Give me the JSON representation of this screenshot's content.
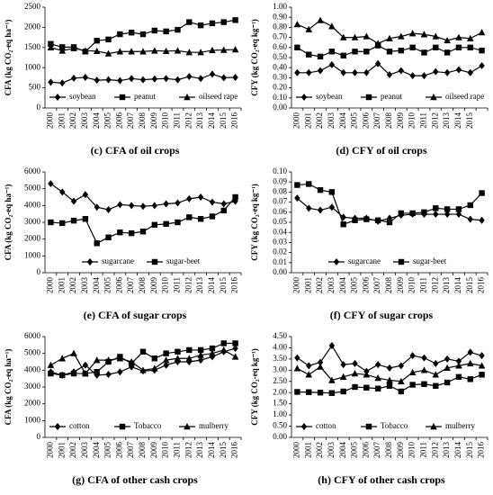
{
  "chart_data": [
    {
      "type": "line",
      "caption": "(c) CFA of oil crops",
      "ylabel": "CFA (kg CO₂-eq ha⁻¹)",
      "legend": "lower center",
      "categories": [
        "2000",
        "2001",
        "2002",
        "2003",
        "2004",
        "2005",
        "2006",
        "2007",
        "2008",
        "2009",
        "2010",
        "2011",
        "2012",
        "2013",
        "2014",
        "2015",
        "2016"
      ],
      "ylim": [
        0,
        2500
      ],
      "yticks": [
        0,
        500,
        1000,
        1500,
        2000,
        2500
      ],
      "series": [
        {
          "name": "soybean",
          "color": "#000000",
          "marker": "diamond",
          "values": [
            640,
            620,
            740,
            760,
            690,
            700,
            680,
            730,
            700,
            720,
            730,
            700,
            780,
            730,
            840,
            750,
            760
          ]
        },
        {
          "name": "peanut",
          "color": "#000000",
          "marker": "square",
          "values": [
            1590,
            1510,
            1510,
            1400,
            1670,
            1700,
            1830,
            1870,
            1830,
            1920,
            1900,
            1940,
            2130,
            2050,
            2100,
            2130,
            2180
          ]
        },
        {
          "name": "oilseed rape",
          "color": "#000000",
          "marker": "triangle",
          "values": [
            1500,
            1420,
            1480,
            1420,
            1410,
            1350,
            1400,
            1400,
            1400,
            1420,
            1410,
            1420,
            1380,
            1380,
            1430,
            1440,
            1450
          ]
        }
      ]
    },
    {
      "type": "line",
      "caption": "(d) CFY of oil crops",
      "ylabel": "CFY (kg CO₂-eq kg⁻¹)",
      "legend": "lower center",
      "categories": [
        "2000",
        "2001",
        "2002",
        "2003",
        "2004",
        "2005",
        "2006",
        "2007",
        "2008",
        "2009",
        "2010",
        "2011",
        "2012",
        "2013",
        "2014",
        "2015",
        null
      ],
      "ylim": [
        0,
        1
      ],
      "yticks": [
        {
          "value": 0,
          "label": "0.00"
        },
        {
          "value": 0.1,
          "label": "0.10"
        },
        {
          "value": 0.2,
          "label": "0.20"
        },
        {
          "value": 0.3,
          "label": "0.30"
        },
        {
          "value": 0.4,
          "label": "0.40"
        },
        {
          "value": 0.5,
          "label": "0.50"
        },
        {
          "value": 0.6,
          "label": "0.60"
        },
        {
          "value": 0.7,
          "label": "0.70"
        },
        {
          "value": 0.8,
          "label": "0.80"
        },
        {
          "value": 0.9,
          "label": "0.90"
        },
        {
          "value": 1,
          "label": "1.00"
        }
      ],
      "series": [
        {
          "name": "soybean",
          "color": "#000000",
          "marker": "diamond",
          "values": [
            0.35,
            0.35,
            0.37,
            0.43,
            0.35,
            0.35,
            0.35,
            0.44,
            0.33,
            0.37,
            0.32,
            0.32,
            0.36,
            0.35,
            0.38,
            0.35,
            0.42
          ]
        },
        {
          "name": "peanut",
          "color": "#000000",
          "marker": "square",
          "values": [
            0.6,
            0.53,
            0.51,
            0.56,
            0.52,
            0.56,
            0.56,
            0.62,
            0.56,
            0.57,
            0.6,
            0.55,
            0.6,
            0.55,
            0.6,
            0.6,
            0.57
          ]
        },
        {
          "name": "oilseed rape",
          "color": "#000000",
          "marker": "triangle",
          "values": [
            0.83,
            0.78,
            0.87,
            0.81,
            0.7,
            0.7,
            0.71,
            0.64,
            0.69,
            0.71,
            0.74,
            0.73,
            0.71,
            0.67,
            0.7,
            0.69,
            0.75
          ]
        }
      ]
    },
    {
      "type": "line",
      "caption": "(e) CFA of sugar crops",
      "ylabel": "CFA (kg CO₂-eq ha⁻¹)",
      "legend": "lower center",
      "categories": [
        "2000",
        "2001",
        "2002",
        "2003",
        "2004",
        "2005",
        "2006",
        "2007",
        "2008",
        "2009",
        "2010",
        "2011",
        "2012",
        "2013",
        "2014",
        "2015",
        "2016"
      ],
      "ylim": [
        0,
        6000
      ],
      "yticks": [
        0,
        1000,
        2000,
        3000,
        4000,
        5000,
        6000
      ],
      "series": [
        {
          "name": "sugarcane",
          "color": "#000000",
          "marker": "diamond",
          "values": [
            5300,
            4800,
            4250,
            4650,
            3900,
            3750,
            4050,
            4000,
            3950,
            4000,
            4100,
            4150,
            4400,
            4500,
            4200,
            4100,
            4250
          ]
        },
        {
          "name": "sugar-beet",
          "color": "#000000",
          "marker": "square",
          "values": [
            3000,
            2950,
            3100,
            3200,
            1750,
            2100,
            2400,
            2350,
            2450,
            2850,
            2900,
            3000,
            3300,
            3200,
            3350,
            3700,
            4500
          ]
        }
      ]
    },
    {
      "type": "line",
      "caption": "(f) CFY of sugar crops",
      "ylabel": "CFY (kg CO₂-eq kg⁻¹)",
      "legend": "lower center",
      "categories": [
        "2000",
        "2001",
        "2002",
        "2003",
        "2004",
        "2005",
        "2006",
        "2007",
        "2008",
        "2009",
        "2010",
        "2011",
        "2012",
        "2013",
        "2014",
        "2015",
        "2016"
      ],
      "ylim": [
        0,
        0.1
      ],
      "yticks": [
        {
          "value": 0,
          "label": "0.00"
        },
        {
          "value": 0.01,
          "label": "0.01"
        },
        {
          "value": 0.02,
          "label": "0.02"
        },
        {
          "value": 0.03,
          "label": "0.03"
        },
        {
          "value": 0.04,
          "label": "0.04"
        },
        {
          "value": 0.05,
          "label": "0.05"
        },
        {
          "value": 0.06,
          "label": "0.06"
        },
        {
          "value": 0.07,
          "label": "0.07"
        },
        {
          "value": 0.08,
          "label": "0.08"
        },
        {
          "value": 0.09,
          "label": "0.09"
        },
        {
          "value": 0.1,
          "label": "0.10"
        }
      ],
      "series": [
        {
          "name": "sugarcane",
          "color": "#000000",
          "marker": "diamond",
          "values": [
            0.074,
            0.064,
            0.062,
            0.065,
            0.055,
            0.054,
            0.054,
            0.051,
            0.054,
            0.057,
            0.058,
            0.058,
            0.058,
            0.058,
            0.058,
            0.053,
            0.052
          ]
        },
        {
          "name": "sugar-beet",
          "color": "#000000",
          "marker": "square",
          "values": [
            0.087,
            0.088,
            0.082,
            0.08,
            0.048,
            0.052,
            0.053,
            0.052,
            0.05,
            0.059,
            0.059,
            0.06,
            0.064,
            0.063,
            0.063,
            0.067,
            0.079
          ]
        }
      ]
    },
    {
      "type": "line",
      "caption": "(g) CFA of other cash crops",
      "ylabel": "CFA (kg CO₂-eq ha⁻¹)",
      "legend": "lower center",
      "categories": [
        "2000",
        "2001",
        "2002",
        "2003",
        "2004",
        "2005",
        "2006",
        "2007",
        "2008",
        "2009",
        "2010",
        "2011",
        "2012",
        "2013",
        "2014",
        "2015",
        "2016"
      ],
      "ylim": [
        0,
        6000
      ],
      "yticks": [
        0,
        1000,
        2000,
        3000,
        4000,
        5000,
        6000
      ],
      "series": [
        {
          "name": "cotton",
          "color": "#000000",
          "marker": "diamond",
          "values": [
            3900,
            3700,
            3900,
            4300,
            3700,
            3750,
            3900,
            4200,
            3950,
            4000,
            4300,
            4500,
            4500,
            4600,
            4800,
            5100,
            5300
          ]
        },
        {
          "name": "Tobacco",
          "color": "#000000",
          "marker": "square",
          "values": [
            3800,
            3700,
            3800,
            3800,
            3900,
            4500,
            4800,
            4400,
            5100,
            4700,
            5000,
            5100,
            5200,
            5200,
            5300,
            5600,
            5600
          ]
        },
        {
          "name": "mulberry",
          "color": "#000000",
          "marker": "triangle",
          "values": [
            4300,
            4700,
            5000,
            3800,
            4600,
            4600,
            4700,
            4500,
            4000,
            4100,
            4600,
            4700,
            4700,
            4900,
            5000,
            5200,
            4800
          ]
        }
      ]
    },
    {
      "type": "line",
      "caption": "(h) CFY of other cash crops",
      "ylabel": "CFY (kg CO₂-eq kg⁻¹)",
      "legend": "lower center",
      "categories": [
        "2000",
        "2001",
        "2002",
        "2003",
        "2004",
        "2005",
        "2006",
        "2007",
        "2008",
        "2009",
        "2010",
        "2011",
        "2012",
        "2013",
        "2014",
        "2015",
        "2016"
      ],
      "ylim": [
        0,
        4.5
      ],
      "yticks": [
        {
          "value": 0,
          "label": "0.00"
        },
        {
          "value": 0.5,
          "label": "0.50"
        },
        {
          "value": 1,
          "label": "1.00"
        },
        {
          "value": 1.5,
          "label": "1.50"
        },
        {
          "value": 2,
          "label": "2.00"
        },
        {
          "value": 2.5,
          "label": "2.50"
        },
        {
          "value": 3,
          "label": "3.00"
        },
        {
          "value": 3.5,
          "label": "3.50"
        },
        {
          "value": 4,
          "label": "4.00"
        },
        {
          "value": 4.5,
          "label": "4.50"
        }
      ],
      "series": [
        {
          "name": "cotton",
          "color": "#000000",
          "marker": "diamond",
          "values": [
            3.55,
            3.2,
            3.35,
            4.1,
            3.25,
            3.3,
            2.95,
            3.25,
            3.1,
            3.2,
            3.65,
            3.55,
            3.3,
            3.5,
            3.4,
            3.8,
            3.65
          ]
        },
        {
          "name": "Tobacco",
          "color": "#000000",
          "marker": "square",
          "values": [
            2.03,
            2.02,
            2.0,
            1.98,
            2.05,
            2.25,
            2.22,
            2.18,
            2.3,
            2.05,
            2.35,
            2.38,
            2.3,
            2.45,
            2.7,
            2.6,
            2.8
          ]
        },
        {
          "name": "mulberry",
          "color": "#000000",
          "marker": "triangle",
          "values": [
            3.08,
            2.8,
            3.15,
            2.55,
            2.7,
            2.85,
            2.8,
            2.65,
            2.55,
            2.5,
            2.9,
            3.0,
            2.8,
            3.1,
            3.2,
            3.3,
            3.2
          ]
        }
      ]
    }
  ]
}
